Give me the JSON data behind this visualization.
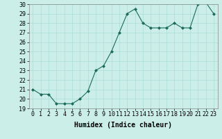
{
  "xlabel": "Humidex (Indice chaleur)",
  "x": [
    0,
    1,
    2,
    3,
    4,
    5,
    6,
    7,
    8,
    9,
    10,
    11,
    12,
    13,
    14,
    15,
    16,
    17,
    18,
    19,
    20,
    21,
    22,
    23
  ],
  "y": [
    21.0,
    20.5,
    20.5,
    19.5,
    19.5,
    19.5,
    20.0,
    20.8,
    23.0,
    23.5,
    25.0,
    27.0,
    29.0,
    29.5,
    28.0,
    27.5,
    27.5,
    27.5,
    28.0,
    27.5,
    27.5,
    30.0,
    30.2,
    29.0
  ],
  "ylim": [
    19,
    30
  ],
  "yticks": [
    19,
    20,
    21,
    22,
    23,
    24,
    25,
    26,
    27,
    28,
    29,
    30
  ],
  "xlim": [
    -0.5,
    23.5
  ],
  "line_color": "#1a6b5a",
  "marker": "D",
  "marker_size": 2,
  "bg_color": "#cceee8",
  "grid_color": "#aaddd5",
  "tick_fontsize": 6,
  "label_fontsize": 7
}
